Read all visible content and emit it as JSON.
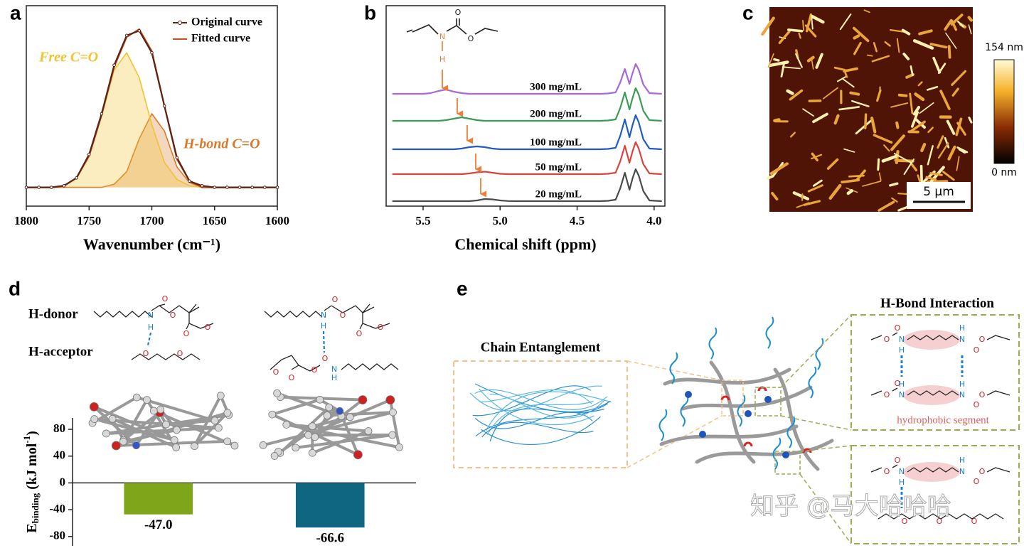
{
  "panels": {
    "labels": [
      "a",
      "b",
      "c",
      "d",
      "e"
    ]
  },
  "chart_data": [
    {
      "type": "line",
      "xlabel": "Wavenumber (cm⁻¹)",
      "xlim": [
        1800,
        1600
      ],
      "xticks": [
        1800,
        1750,
        1700,
        1650,
        1600
      ],
      "ylim": [
        -0.12,
        1.16
      ],
      "x": [
        1800,
        1790,
        1780,
        1770,
        1760,
        1750,
        1740,
        1730,
        1720,
        1710,
        1700,
        1690,
        1680,
        1670,
        1660,
        1650,
        1640,
        1630,
        1620,
        1610,
        1600
      ],
      "series": [
        {
          "name": "Original curve",
          "color": "#5a2416",
          "in_legend": true,
          "markers": true,
          "values": [
            0,
            0,
            0,
            0.01,
            0.06,
            0.21,
            0.47,
            0.78,
            0.97,
            1.0,
            0.86,
            0.52,
            0.19,
            0.04,
            0.01,
            0,
            0,
            0,
            0,
            0,
            0
          ]
        },
        {
          "name": "Fitted curve",
          "color": "#c8501e",
          "in_legend": true,
          "values": [
            0,
            0,
            0,
            0.01,
            0.06,
            0.2,
            0.46,
            0.77,
            0.96,
            1.01,
            0.87,
            0.52,
            0.18,
            0.04,
            0,
            0,
            0,
            0,
            0,
            0,
            0
          ]
        },
        {
          "name": "Free C=O",
          "color": "#f2c230",
          "area": true,
          "values": [
            0,
            0,
            0,
            0.01,
            0.06,
            0.2,
            0.46,
            0.75,
            0.86,
            0.7,
            0.4,
            0.16,
            0.05,
            0.01,
            0,
            0,
            0,
            0,
            0,
            0,
            0
          ]
        },
        {
          "name": "H-bond C=O",
          "color": "#d97a2a",
          "area": true,
          "values": [
            0,
            0,
            0,
            0,
            0,
            0,
            0,
            0.02,
            0.1,
            0.31,
            0.47,
            0.36,
            0.13,
            0.03,
            0,
            0,
            0,
            0,
            0,
            0,
            0
          ]
        }
      ]
    },
    {
      "type": "line",
      "xlabel": "Chemical shift (ppm)",
      "xlim": [
        5.74,
        3.93
      ],
      "xticks": [
        5.5,
        {
          "value": 5,
          "label": "5.0"
        },
        4.5,
        {
          "value": 4,
          "label": "4.0"
        }
      ],
      "ylim": [
        0,
        28.2
      ],
      "direct_labels": true,
      "x": [
        5.7,
        5.65,
        5.6,
        5.55,
        5.5,
        5.45,
        5.4,
        5.35,
        5.3,
        5.25,
        5.2,
        5.15,
        5.1,
        5.05,
        5.0,
        4.95,
        4.9,
        4.85,
        4.8,
        4.75,
        4.7,
        4.65,
        4.6,
        4.55,
        4.5,
        4.45,
        4.4,
        4.35,
        4.3,
        4.25,
        4.22,
        4.19,
        4.16,
        4.14,
        4.12,
        4.1,
        4.07,
        4.03,
        3.95
      ],
      "series": [
        {
          "name": "300 mg/mL",
          "color": "#a66ad6",
          "values": [
            15.8,
            15.8,
            15.8,
            15.8,
            15.8,
            15.9,
            16.2,
            16.4,
            16.1,
            15.9,
            15.8,
            15.8,
            15.8,
            15.8,
            15.8,
            15.8,
            15.8,
            15.8,
            15.8,
            15.8,
            15.8,
            15.8,
            15.8,
            15.8,
            15.8,
            15.8,
            15.8,
            15.8,
            15.85,
            16.0,
            17.4,
            19.3,
            17.2,
            18.7,
            20.0,
            19.2,
            17.1,
            15.9,
            15.8
          ]
        },
        {
          "name": "200 mg/mL",
          "color": "#3b9a55",
          "values": [
            12.0,
            12.0,
            12.0,
            12.0,
            12.0,
            12.0,
            12.0,
            12.1,
            12.3,
            12.5,
            12.3,
            12.1,
            12.0,
            12.0,
            12.0,
            12.0,
            12.0,
            12.0,
            12.0,
            12.0,
            12.0,
            12.0,
            12.0,
            12.0,
            12.0,
            12.0,
            12.0,
            12.0,
            12.05,
            12.2,
            13.8,
            16.0,
            13.6,
            15.2,
            16.6,
            15.7,
            13.4,
            12.1,
            12.0
          ]
        },
        {
          "name": "100 mg/mL",
          "color": "#1f5bc0",
          "values": [
            8.0,
            8.0,
            8.0,
            8.0,
            8.0,
            8.0,
            8.0,
            8.0,
            8.0,
            8.1,
            8.3,
            8.4,
            8.3,
            8.1,
            8.0,
            8.0,
            8.0,
            8.0,
            8.0,
            8.0,
            8.0,
            8.0,
            8.0,
            8.0,
            8.0,
            8.0,
            8.0,
            8.0,
            8.05,
            8.2,
            9.9,
            12.2,
            9.7,
            11.4,
            12.8,
            11.8,
            9.4,
            8.1,
            8.0
          ]
        },
        {
          "name": "50 mg/mL",
          "color": "#d8433e",
          "values": [
            4.5,
            4.5,
            4.5,
            4.5,
            4.5,
            4.5,
            4.5,
            4.5,
            4.5,
            4.5,
            4.6,
            4.75,
            4.85,
            4.7,
            4.55,
            4.5,
            4.5,
            4.5,
            4.5,
            4.5,
            4.5,
            4.5,
            4.5,
            4.5,
            4.5,
            4.5,
            4.5,
            4.5,
            4.55,
            4.7,
            6.3,
            8.5,
            6.1,
            7.7,
            9.0,
            8.1,
            5.9,
            4.6,
            4.5
          ]
        },
        {
          "name": "20 mg/mL",
          "color": "#4a4a4a",
          "values": [
            0.7,
            0.7,
            0.7,
            0.7,
            0.7,
            0.7,
            0.7,
            0.7,
            0.7,
            0.7,
            0.7,
            0.8,
            1.0,
            0.95,
            0.8,
            0.72,
            0.7,
            0.7,
            0.7,
            0.7,
            0.7,
            0.7,
            0.7,
            0.7,
            0.7,
            0.7,
            0.7,
            0.7,
            0.75,
            0.9,
            2.5,
            4.7,
            2.3,
            3.9,
            5.2,
            4.3,
            2.1,
            0.8,
            0.7
          ]
        }
      ],
      "structure_atoms": [
        "O",
        "N",
        "O",
        "H"
      ]
    },
    {
      "type": "bar",
      "ylabel": [
        "E",
        "binding",
        " (kJ mol",
        "-1",
        ")"
      ],
      "categories": [
        null,
        null
      ],
      "values": [
        -47.0,
        -66.6
      ],
      "value_labels": [
        "-47.0",
        "-66.6"
      ],
      "colors": [
        "#7fa51b",
        "#0e6680"
      ],
      "ylim": [
        -94,
        97
      ],
      "yticks": [
        -80,
        -40,
        0,
        40,
        80
      ]
    }
  ],
  "afm": {
    "scale_bar": "5 µm",
    "colorbar_max": "154 nm",
    "colorbar_min": "0 nm"
  },
  "panel_d": {
    "donor": "H-donor",
    "acceptor": "H-acceptor",
    "atoms": [
      "O",
      "O",
      "N",
      "H",
      "O",
      "O",
      "O",
      "O",
      "O",
      "O",
      "N",
      "H",
      "O",
      "O",
      "O",
      "O",
      "N",
      "H",
      "O",
      "O"
    ]
  },
  "panel_e": {
    "chain_entanglement": "Chain Entanglement",
    "hbond_interaction": "H-Bond Interaction",
    "hydrophobic_segment": "hydrophobic segment",
    "atoms": [
      "O",
      "O",
      "N",
      "H",
      "H",
      "N",
      "O",
      "O",
      "O",
      "O",
      "H",
      "N",
      "N",
      "H",
      "O",
      "O",
      "O",
      "O",
      "N",
      "H",
      "H",
      "N",
      "O",
      "O",
      "O",
      "O",
      "O"
    ]
  },
  "watermark": "知乎 @马大哈哈哈"
}
